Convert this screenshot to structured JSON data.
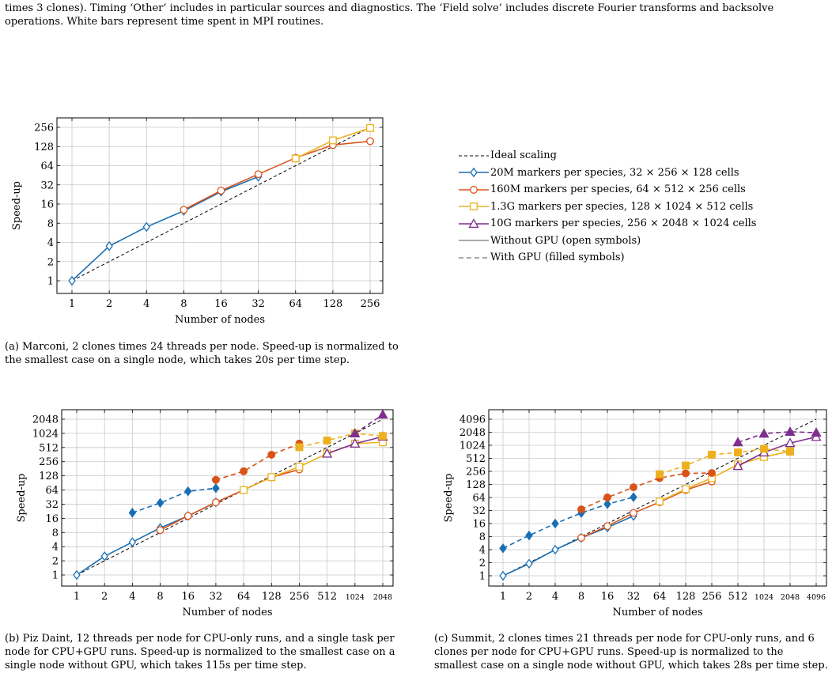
{
  "top_caption": "times 3 clones). Timing ‘Other’ includes in particular sources and diagnostics. The ‘Field solve’ includes discrete Fourier transforms and backsolve operations. White bars represent time spent in MPI routines.",
  "captions": {
    "a": "(a) Marconi, 2 clones times 24 threads per node. Speed-up is normalized to the smallest case on a single node, which takes 20s per time step.",
    "b": "(b) Piz Daint, 12 threads per node for CPU-only runs, and a single task per node for CPU+GPU runs. Speed-up is normalized to the smallest case on a single node without GPU, which takes 115s per time step.",
    "c": "(c) Summit, 2 clones times 21 threads per node for CPU-only runs, and 6 clones per node for CPU+GPU runs. Speed-up is normalized to the smallest case on a single node without GPU, which takes 28s per time step."
  },
  "colors": {
    "20M": "#1a6fb4",
    "160M": "#d95319",
    "1.3G": "#edb120",
    "10G": "#7e2f8e",
    "ideal": "#000000",
    "grid": "#c8c8c8"
  },
  "legend": [
    {
      "key": "ideal",
      "label": "Ideal scaling",
      "style": "ideal"
    },
    {
      "key": "20M",
      "label": "20M markers per species, 32 × 256 × 128 cells",
      "style": "series",
      "marker": "diamond"
    },
    {
      "key": "160M",
      "label": "160M markers per species, 64 × 512 × 256 cells",
      "style": "series",
      "marker": "circle"
    },
    {
      "key": "1.3G",
      "label": "1.3G markers per species, 128 × 1024 × 512 cells",
      "style": "series",
      "marker": "square"
    },
    {
      "key": "10G",
      "label": "10G markers per species, 256 × 2048 × 1024 cells",
      "style": "series",
      "marker": "triangle"
    },
    {
      "key": "cpu",
      "label": "Without GPU (open symbols)",
      "style": "solid-gray"
    },
    {
      "key": "gpu",
      "label": "With GPU (filled symbols)",
      "style": "dashed-gray"
    }
  ],
  "chart_data": [
    {
      "id": "a",
      "type": "line",
      "scale": "log2",
      "xlabel": "Number of nodes",
      "ylabel": "Speed-up",
      "xticks": [
        1,
        2,
        4,
        8,
        16,
        32,
        64,
        128,
        256
      ],
      "yticks": [
        1,
        2,
        4,
        8,
        16,
        32,
        64,
        128,
        256
      ],
      "xlim": [
        1,
        256
      ],
      "ylim": [
        1,
        256
      ],
      "ideal": [
        [
          1,
          1
        ],
        [
          256,
          256
        ]
      ],
      "series": [
        {
          "key": "20M",
          "marker": "diamond",
          "gpu": false,
          "points": [
            [
              1,
              1
            ],
            [
              2,
              3.5
            ],
            [
              4,
              7
            ],
            [
              8,
              12.5
            ],
            [
              16,
              25
            ],
            [
              32,
              43
            ]
          ]
        },
        {
          "key": "160M",
          "marker": "circle",
          "gpu": false,
          "points": [
            [
              8,
              13
            ],
            [
              16,
              26
            ],
            [
              32,
              47
            ],
            [
              64,
              85
            ],
            [
              128,
              135
            ],
            [
              256,
              155
            ]
          ]
        },
        {
          "key": "1.3G",
          "marker": "square",
          "gpu": false,
          "points": [
            [
              64,
              83
            ],
            [
              128,
              160
            ],
            [
              256,
              250
            ]
          ]
        }
      ]
    },
    {
      "id": "b",
      "type": "line",
      "scale": "log2",
      "xlabel": "Number of nodes",
      "ylabel": "Speed-up",
      "xticks": [
        1,
        2,
        4,
        8,
        16,
        32,
        64,
        128,
        256,
        512,
        1024,
        2048
      ],
      "yticks": [
        1,
        2,
        4,
        8,
        16,
        32,
        64,
        128,
        256,
        512,
        1024,
        2048
      ],
      "xlim": [
        1,
        2048
      ],
      "ylim": [
        1,
        2048
      ],
      "ideal": [
        [
          1,
          1
        ],
        [
          2048,
          2048
        ]
      ],
      "series": [
        {
          "key": "20M",
          "marker": "diamond",
          "gpu": false,
          "points": [
            [
              1,
              1
            ],
            [
              2,
              2.5
            ],
            [
              4,
              5
            ],
            [
              8,
              10
            ],
            [
              16,
              18
            ],
            [
              32,
              35
            ]
          ]
        },
        {
          "key": "160M",
          "marker": "circle",
          "gpu": false,
          "points": [
            [
              8,
              9
            ],
            [
              16,
              18
            ],
            [
              32,
              35
            ],
            [
              64,
              64
            ],
            [
              128,
              120
            ],
            [
              256,
              175
            ]
          ]
        },
        {
          "key": "1.3G",
          "marker": "square",
          "gpu": false,
          "points": [
            [
              64,
              64
            ],
            [
              128,
              120
            ],
            [
              256,
              200
            ],
            [
              512,
              380
            ],
            [
              1024,
              620
            ],
            [
              2048,
              660
            ]
          ]
        },
        {
          "key": "10G",
          "marker": "triangle",
          "gpu": false,
          "points": [
            [
              512,
              380
            ],
            [
              1024,
              620
            ],
            [
              2048,
              870
            ]
          ]
        },
        {
          "key": "20M",
          "marker": "diamond",
          "gpu": true,
          "points": [
            [
              4,
              21
            ],
            [
              8,
              34
            ],
            [
              16,
              60
            ],
            [
              32,
              70
            ]
          ]
        },
        {
          "key": "160M",
          "marker": "circle",
          "gpu": true,
          "points": [
            [
              32,
              105
            ],
            [
              64,
              160
            ],
            [
              128,
              360
            ],
            [
              256,
              620
            ]
          ]
        },
        {
          "key": "1.3G",
          "marker": "square",
          "gpu": true,
          "points": [
            [
              256,
              520
            ],
            [
              512,
              720
            ],
            [
              1024,
              1020
            ],
            [
              2048,
              900
            ]
          ]
        },
        {
          "key": "10G",
          "marker": "triangle",
          "gpu": true,
          "points": [
            [
              1024,
              1020
            ],
            [
              2048,
              2560
            ]
          ]
        }
      ]
    },
    {
      "id": "c",
      "type": "line",
      "scale": "log2",
      "xlabel": "Number of nodes",
      "ylabel": "Speed-up",
      "xticks": [
        1,
        2,
        4,
        8,
        16,
        32,
        64,
        128,
        256,
        512,
        1024,
        2048,
        4096
      ],
      "yticks": [
        1,
        2,
        4,
        8,
        16,
        32,
        64,
        128,
        256,
        512,
        1024,
        2048,
        4096
      ],
      "xlim": [
        1,
        4096
      ],
      "ylim": [
        1,
        4096
      ],
      "ideal": [
        [
          1,
          1
        ],
        [
          4096,
          4096
        ]
      ],
      "series": [
        {
          "key": "20M",
          "marker": "diamond",
          "gpu": false,
          "points": [
            [
              1,
              1
            ],
            [
              2,
              1.9
            ],
            [
              4,
              4
            ],
            [
              8,
              7.5
            ],
            [
              16,
              13
            ],
            [
              32,
              24
            ]
          ]
        },
        {
          "key": "160M",
          "marker": "circle",
          "gpu": false,
          "points": [
            [
              8,
              7.5
            ],
            [
              16,
              14
            ],
            [
              32,
              28
            ],
            [
              64,
              50
            ],
            [
              128,
              95
            ],
            [
              256,
              150
            ]
          ]
        },
        {
          "key": "1.3G",
          "marker": "square",
          "gpu": false,
          "points": [
            [
              64,
              52
            ],
            [
              128,
              100
            ],
            [
              256,
              180
            ],
            [
              512,
              370
            ],
            [
              1024,
              550
            ],
            [
              2048,
              750
            ]
          ]
        },
        {
          "key": "10G",
          "marker": "triangle",
          "gpu": false,
          "points": [
            [
              512,
              340
            ],
            [
              1024,
              700
            ],
            [
              2048,
              1150
            ],
            [
              4096,
              1600
            ]
          ]
        },
        {
          "key": "20M",
          "marker": "diamond",
          "gpu": true,
          "points": [
            [
              1,
              4.3
            ],
            [
              2,
              8.5
            ],
            [
              4,
              16
            ],
            [
              8,
              28
            ],
            [
              16,
              45
            ],
            [
              32,
              65
            ]
          ]
        },
        {
          "key": "160M",
          "marker": "circle",
          "gpu": true,
          "points": [
            [
              8,
              34
            ],
            [
              16,
              64
            ],
            [
              32,
              110
            ],
            [
              64,
              180
            ],
            [
              128,
              230
            ],
            [
              256,
              235
            ]
          ]
        },
        {
          "key": "1.3G",
          "marker": "square",
          "gpu": true,
          "points": [
            [
              64,
              220
            ],
            [
              128,
              350
            ],
            [
              256,
              620
            ],
            [
              512,
              700
            ],
            [
              1024,
              850
            ],
            [
              2048,
              730
            ]
          ]
        },
        {
          "key": "10G",
          "marker": "triangle",
          "gpu": true,
          "points": [
            [
              512,
              1200
            ],
            [
              1024,
              1900
            ],
            [
              2048,
              2100
            ],
            [
              4096,
              2000
            ]
          ]
        }
      ]
    }
  ]
}
